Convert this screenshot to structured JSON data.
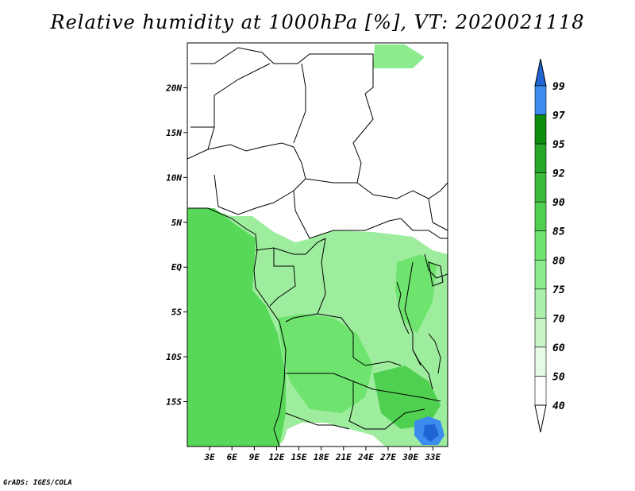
{
  "title": "Relative humidity at 1000hPa [%], VT: 2020021118",
  "credit": "GrADS: IGES/COLA",
  "map": {
    "lon_ticks": [
      "3E",
      "6E",
      "9E",
      "12E",
      "15E",
      "18E",
      "21E",
      "24E",
      "27E",
      "30E",
      "33E"
    ],
    "lat_ticks": [
      "20N",
      "15N",
      "10N",
      "5N",
      "EQ",
      "5S",
      "10S",
      "15S"
    ],
    "lon_range": [
      0,
      35
    ],
    "lat_range": [
      -20,
      25
    ]
  },
  "legend": {
    "levels": [
      "99",
      "97",
      "95",
      "92",
      "90",
      "85",
      "80",
      "75",
      "70",
      "60",
      "50",
      "40"
    ],
    "colors": [
      "#1e64d2",
      "#3c8cf0",
      "#0e8c0e",
      "#28a828",
      "#3cbc3c",
      "#50d050",
      "#6ee46e",
      "#8ceb8c",
      "#aaf0aa",
      "#c8f5c8",
      "#e6fae6",
      "#ffffff"
    ]
  },
  "colors": {
    "ocean_green": "#58d858",
    "land_green_light": "#9eed9e",
    "land_green_dark": "#34b834",
    "dry": "#ffffff",
    "wet_blue": "#3c8cf0",
    "border": "#000000"
  }
}
